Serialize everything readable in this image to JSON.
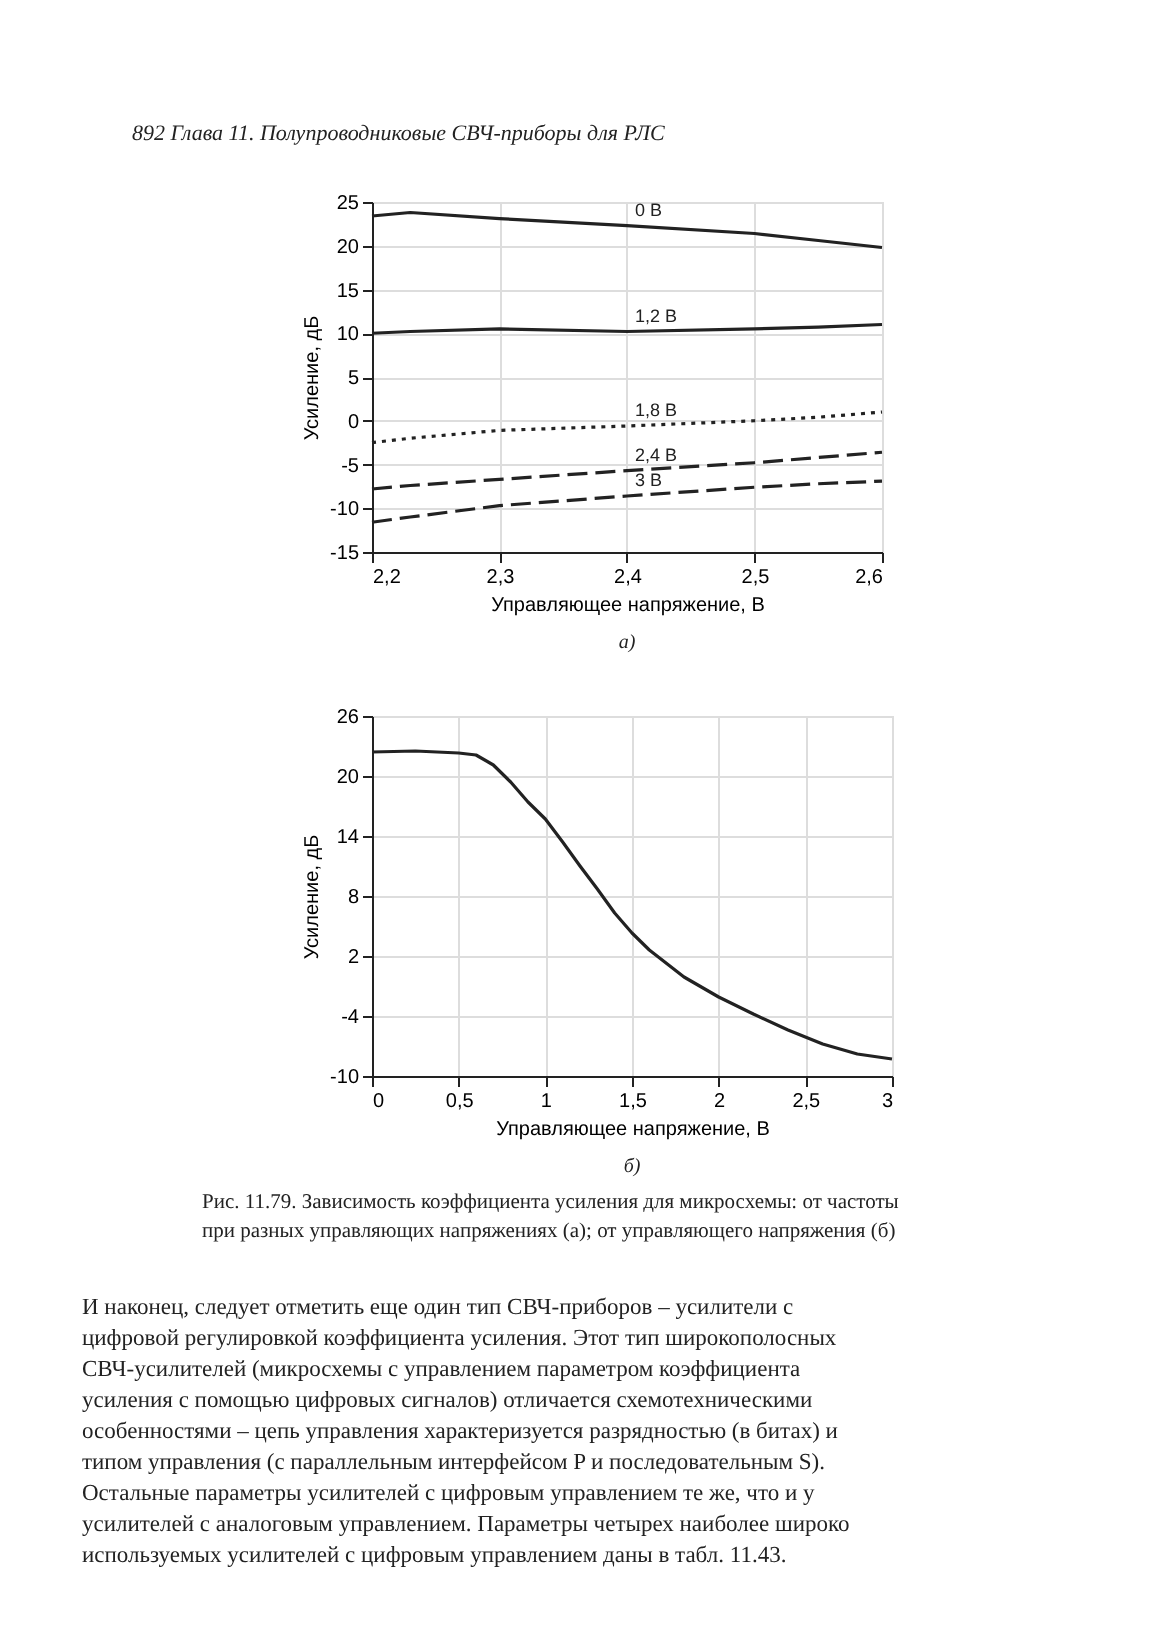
{
  "chart_data": [
    {
      "type": "line",
      "annotations": [
        "892 Глава 11. Полупроводниковые СВЧ-приборы для РЛС",
        "а)"
      ],
      "xlabel": "Управляющее напряжение, В",
      "ylabel": "Усиление, дБ",
      "x": [
        2.2,
        2.23,
        2.3,
        2.4,
        2.5,
        2.55,
        2.6
      ],
      "series": [
        {
          "name": "0 В",
          "color": "#222222",
          "line_style": "solid",
          "values": [
            23.4,
            23.8,
            23.1,
            22.3,
            21.4,
            20.6,
            19.8
          ]
        },
        {
          "name": "1,2 В",
          "color": "#222222",
          "line_style": "solid",
          "values": [
            10.0,
            10.2,
            10.5,
            10.2,
            10.5,
            10.7,
            11.0
          ]
        },
        {
          "name": "1,8 В",
          "color": "#222222",
          "line_style": "dotted",
          "values": [
            -2.5,
            -2.0,
            -1.1,
            -0.6,
            0.0,
            0.4,
            1.0
          ]
        },
        {
          "name": "2,4 В",
          "color": "#222222",
          "line_style": "dashed",
          "values": [
            -7.8,
            -7.4,
            -6.7,
            -5.7,
            -4.8,
            -4.2,
            -3.6
          ]
        },
        {
          "name": "3 В",
          "color": "#222222",
          "line_style": "dashed",
          "values": [
            -11.6,
            -11.0,
            -9.7,
            -8.6,
            -7.6,
            -7.2,
            -6.9
          ]
        }
      ],
      "xlim": [
        2.2,
        2.6
      ],
      "xticks": [
        {
          "value": 2.2,
          "label": "2,2"
        },
        {
          "value": 2.3,
          "label": "2,3"
        },
        {
          "value": 2.4,
          "label": "2,4"
        },
        {
          "value": 2.5,
          "label": "2,5"
        },
        {
          "value": 2.6,
          "label": "2,6"
        }
      ],
      "ylim": [
        -15,
        25
      ],
      "yticks": [
        -15,
        -10,
        -5,
        0,
        5,
        10,
        15,
        20,
        25
      ],
      "grid": true,
      "marker": "none"
    },
    {
      "type": "line",
      "annotations": [
        "б)",
        "Рис. 11.79. Зависимость коэффициента усиления для микросхемы: от частоты при разных управляющих напряжениях (а); от управляющего напряжения (б)",
        "И наконец, следует отметить еще один тип СВЧ-приборов – усилители с цифровой регулировкой коэффициента усиления. Этот тип широкополосных СВЧ-усилителей (микросхемы с управлением параметром коэффициента усиления с помощью цифровых сигналов) отличается схемотехническими особенностями – цепь управления характеризуется разрядностью (в битах) и типом управления (с параллельным интерфейсом P и последовательным S). Остальные параметры усилителей с цифровым управлением те же, что и у усилителей с аналоговым управлением. Параметры четырех наиболее широко используемых усилителей с цифровым управлением даны в табл. 11.43."
      ],
      "xlabel": "Управляющее напряжение, В",
      "ylabel": "Усиление, дБ",
      "x": [
        0,
        0.25,
        0.5,
        0.6,
        0.7,
        0.8,
        0.9,
        1.0,
        1.1,
        1.2,
        1.3,
        1.4,
        1.5,
        1.6,
        1.8,
        2.0,
        2.2,
        2.4,
        2.6,
        2.8,
        3.0
      ],
      "series": [
        {
          "color": "#222222",
          "line_style": "solid",
          "values": [
            22.4,
            22.5,
            22.3,
            22.1,
            21.1,
            19.4,
            17.4,
            15.7,
            13.4,
            11.0,
            8.7,
            6.3,
            4.3,
            2.6,
            -0.1,
            -2.1,
            -3.8,
            -5.4,
            -6.8,
            -7.8,
            -8.3
          ]
        }
      ],
      "xlim": [
        0,
        3
      ],
      "xticks": [
        0,
        {
          "value": 0.5,
          "label": "0,5"
        },
        1,
        {
          "value": 1.5,
          "label": "1,5"
        },
        2,
        {
          "value": 2.5,
          "label": "2,5"
        },
        3
      ],
      "ylim": [
        -10,
        26
      ],
      "yticks": [
        -10,
        -4,
        2,
        8,
        14,
        20,
        26
      ],
      "grid": true,
      "marker": "none"
    }
  ]
}
